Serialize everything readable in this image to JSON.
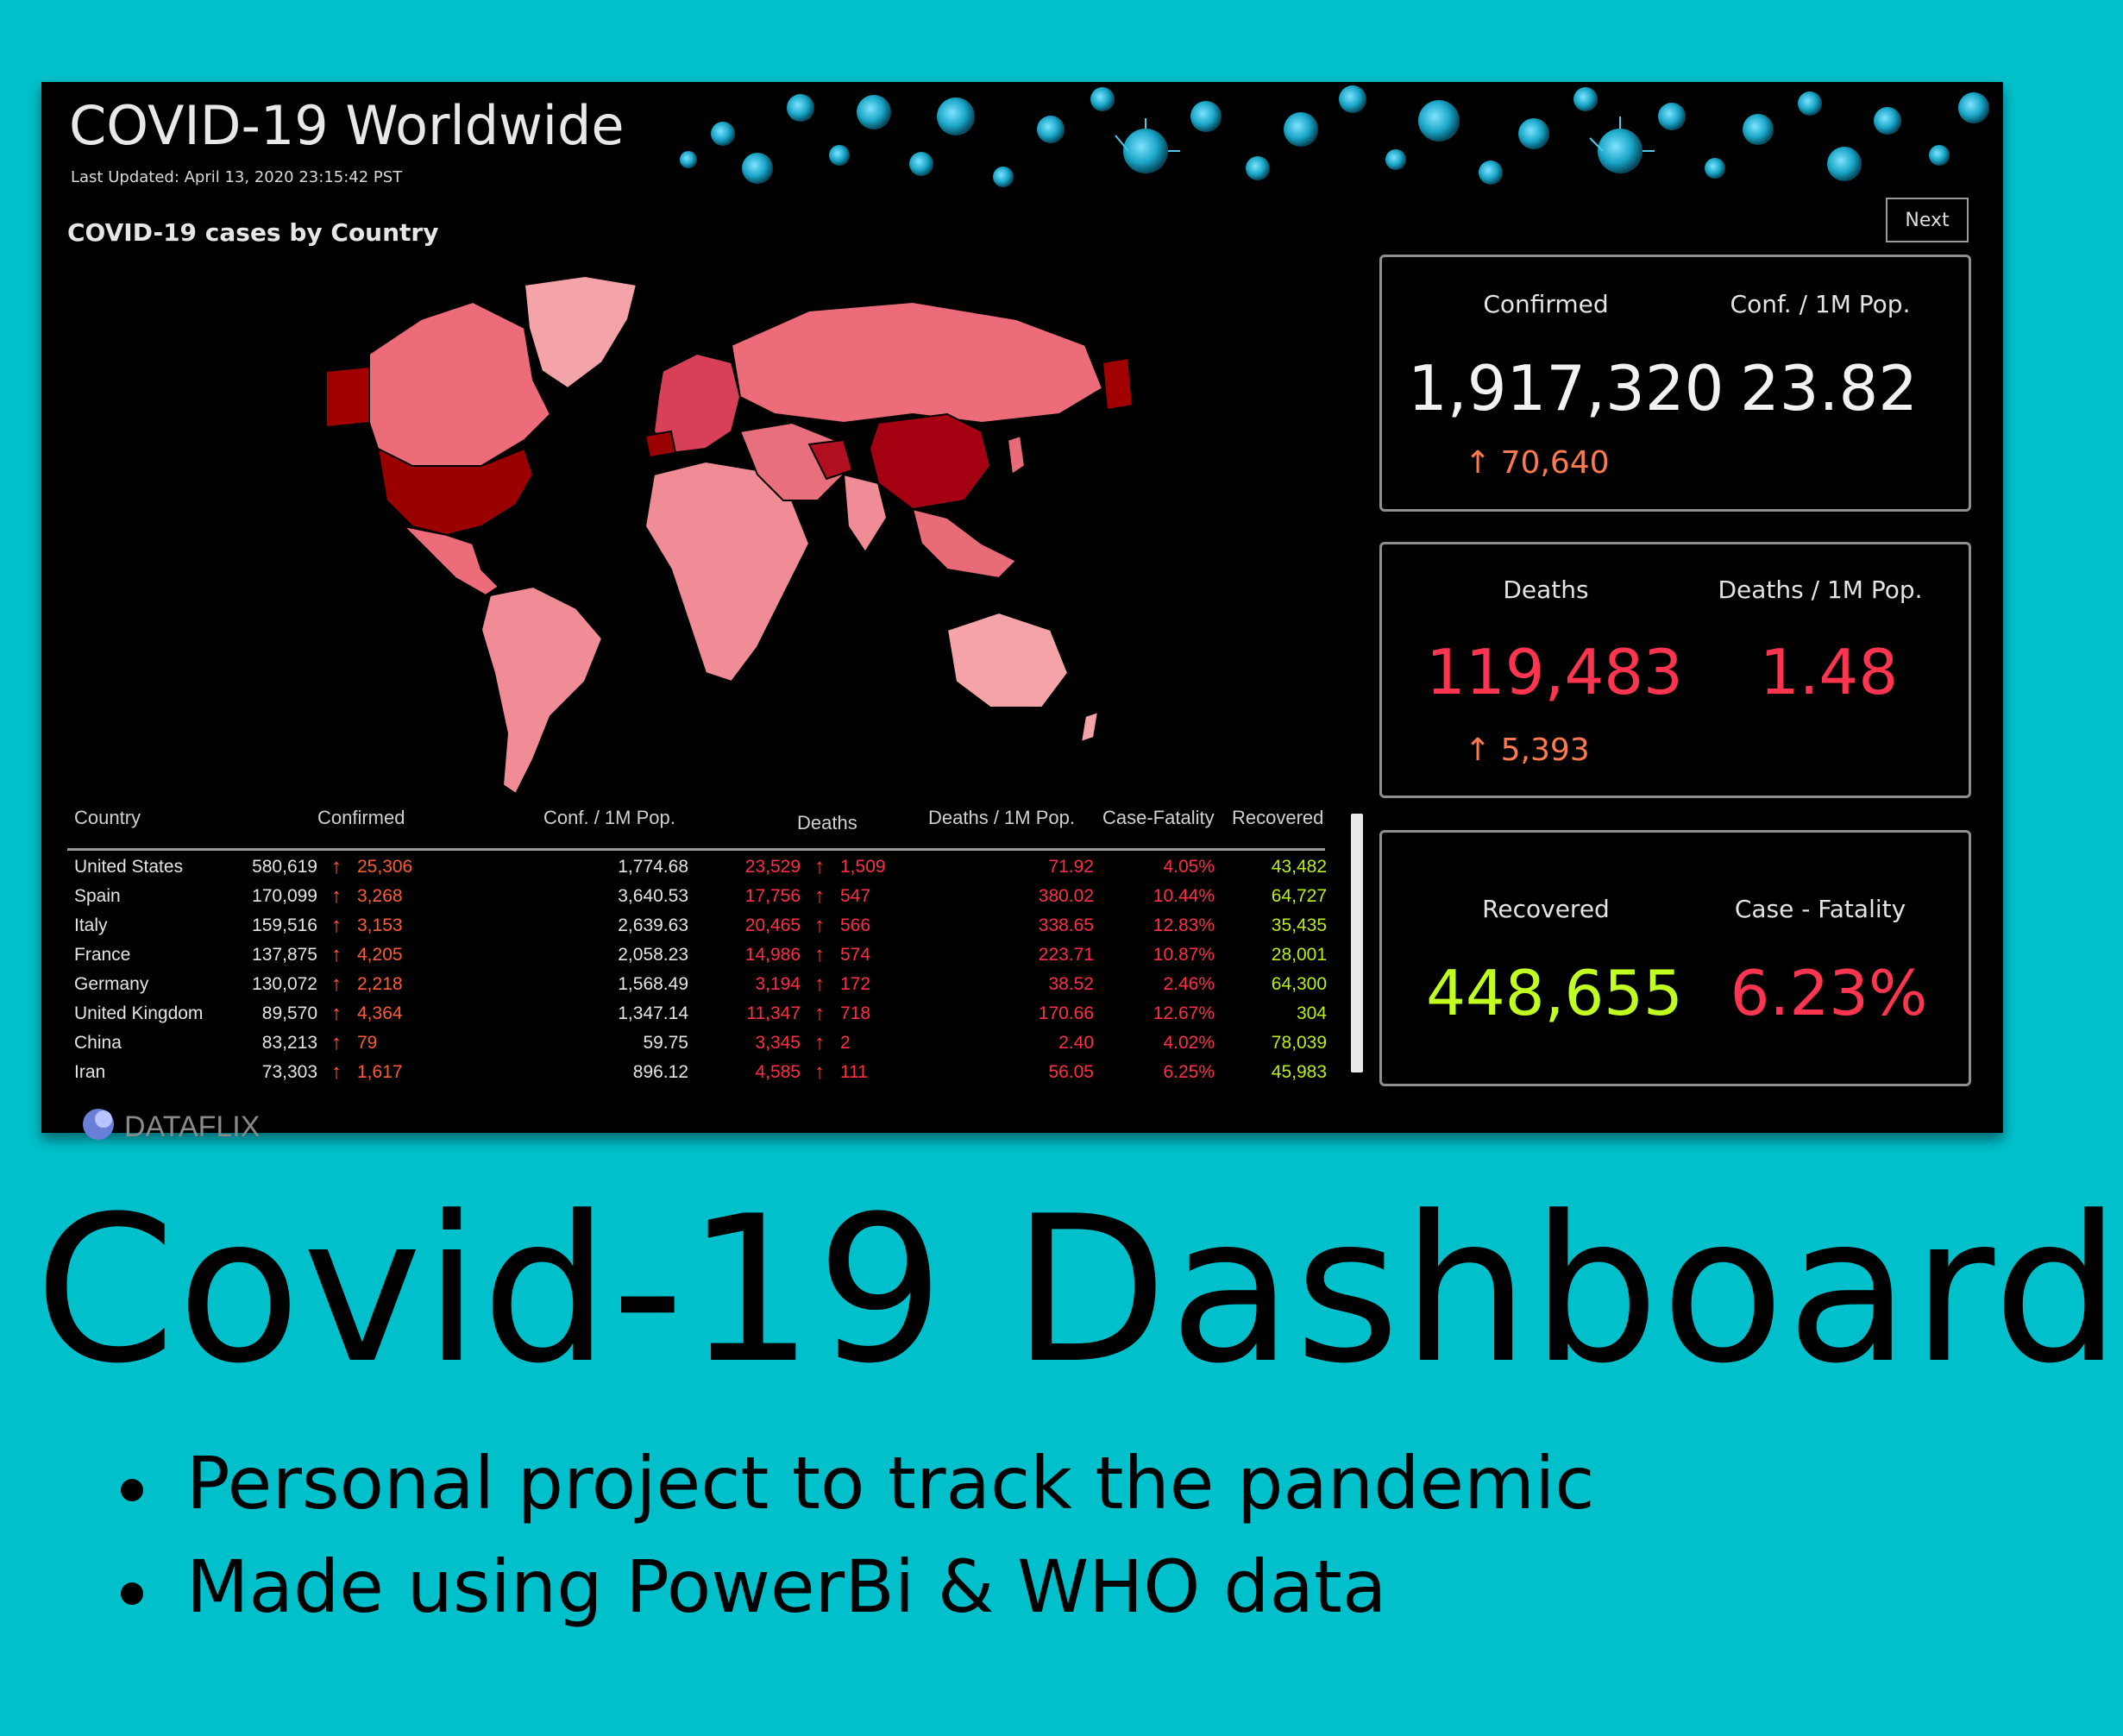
{
  "dashboard": {
    "title": "COVID-19  Worldwide",
    "last_updated": "Last Updated: April 13, 2020 23:15:42 PST",
    "map_title": "COVID-19 cases by Country",
    "next_label": "Next",
    "logo_text": "DATAFLIX",
    "colors": {
      "confirmed": "#f2f2f2",
      "deaths": "#ff3550",
      "recovered": "#c0ff1f",
      "delta": "#ff7a50",
      "map_high": "#9b0000",
      "map_low": "#f4a3a8"
    },
    "kpis": {
      "confirmed": {
        "label": "Confirmed",
        "value": "1,917,320",
        "delta": "70,640"
      },
      "conf_per_1m": {
        "label": "Conf. / 1M Pop.",
        "value": "23.82"
      },
      "deaths": {
        "label": "Deaths",
        "value": "119,483",
        "delta": "5,393"
      },
      "deaths_per_1m": {
        "label": "Deaths / 1M Pop.",
        "value": "1.48"
      },
      "recovered": {
        "label": "Recovered",
        "value": "448,655"
      },
      "case_fatality": {
        "label": "Case - Fatality",
        "value": "6.23%"
      }
    },
    "table": {
      "headers": {
        "country": "Country",
        "confirmed": "Confirmed",
        "conf_pop": "Conf. / 1M Pop.",
        "deaths": "Deaths",
        "deaths_pop": "Deaths / 1M Pop.",
        "cfr": "Case-Fatality",
        "recovered": "Recovered"
      },
      "rows": [
        {
          "country": "United States",
          "confirmed": "580,619",
          "confirmed_delta": "25,306",
          "conf_pop": "1,774.68",
          "deaths": "23,529",
          "deaths_delta": "1,509",
          "deaths_pop": "71.92",
          "cfr": "4.05%",
          "recovered": "43,482"
        },
        {
          "country": "Spain",
          "confirmed": "170,099",
          "confirmed_delta": "3,268",
          "conf_pop": "3,640.53",
          "deaths": "17,756",
          "deaths_delta": "547",
          "deaths_pop": "380.02",
          "cfr": "10.44%",
          "recovered": "64,727"
        },
        {
          "country": "Italy",
          "confirmed": "159,516",
          "confirmed_delta": "3,153",
          "conf_pop": "2,639.63",
          "deaths": "20,465",
          "deaths_delta": "566",
          "deaths_pop": "338.65",
          "cfr": "12.83%",
          "recovered": "35,435"
        },
        {
          "country": "France",
          "confirmed": "137,875",
          "confirmed_delta": "4,205",
          "conf_pop": "2,058.23",
          "deaths": "14,986",
          "deaths_delta": "574",
          "deaths_pop": "223.71",
          "cfr": "10.87%",
          "recovered": "28,001"
        },
        {
          "country": "Germany",
          "confirmed": "130,072",
          "confirmed_delta": "2,218",
          "conf_pop": "1,568.49",
          "deaths": "3,194",
          "deaths_delta": "172",
          "deaths_pop": "38.52",
          "cfr": "2.46%",
          "recovered": "64,300"
        },
        {
          "country": "United Kingdom",
          "confirmed": "89,570",
          "confirmed_delta": "4,364",
          "conf_pop": "1,347.14",
          "deaths": "11,347",
          "deaths_delta": "718",
          "deaths_pop": "170.66",
          "cfr": "12.67%",
          "recovered": "304"
        },
        {
          "country": "China",
          "confirmed": "83,213",
          "confirmed_delta": "79",
          "conf_pop": "59.75",
          "deaths": "3,345",
          "deaths_delta": "2",
          "deaths_pop": "2.40",
          "cfr": "4.02%",
          "recovered": "78,039"
        },
        {
          "country": "Iran",
          "confirmed": "73,303",
          "confirmed_delta": "1,617",
          "conf_pop": "896.12",
          "deaths": "4,585",
          "deaths_delta": "111",
          "deaths_pop": "56.05",
          "cfr": "6.25%",
          "recovered": "45,983"
        }
      ]
    }
  },
  "poster": {
    "title": "Covid-19 Dashboard",
    "bullets": [
      "Personal project to track the pandemic",
      "Made using PowerBi & WHO data"
    ]
  }
}
